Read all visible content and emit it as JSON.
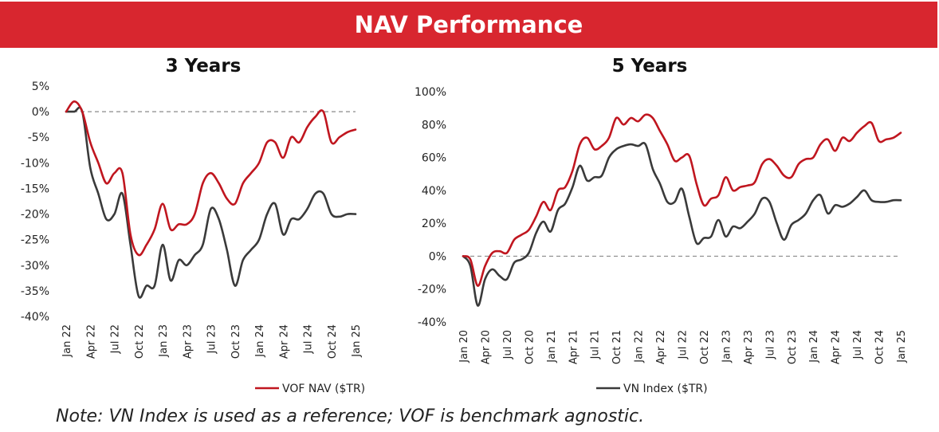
{
  "header": {
    "title": "NAV Performance"
  },
  "note": "Note: VN Index is used as a reference; VOF is benchmark agnostic.",
  "legend": {
    "vof": "VOF NAV ($TR)",
    "vn": "VN Index ($TR)"
  },
  "colors": {
    "banner": "#d8262f",
    "vof": "#c0161f",
    "vn": "#3a3a3a",
    "zero_line": "#8a8a8a"
  },
  "chart_data": [
    {
      "type": "line",
      "title": "3 Years",
      "ylim": [
        -40,
        5
      ],
      "y_ticks": [
        5,
        0,
        -5,
        -10,
        -15,
        -20,
        -25,
        -30,
        -35,
        -40
      ],
      "y_tick_labels": [
        "5%",
        "0%",
        "-5%",
        "-10%",
        "-15%",
        "-20%",
        "-25%",
        "-30%",
        "-35%",
        "-40%"
      ],
      "x_range": [
        0,
        36
      ],
      "x_tick_positions": [
        0,
        3,
        6,
        9,
        12,
        15,
        18,
        21,
        24,
        27,
        30,
        33,
        36
      ],
      "x_tick_labels": [
        "Jan 22",
        "Apr 22",
        "Jul 22",
        "Oct 22",
        "Jan 23",
        "Apr 23",
        "Jul 23",
        "Oct 23",
        "Jan 24",
        "Apr 24",
        "Jul 24",
        "Oct 24",
        "Jan 25"
      ],
      "zero_line": true,
      "series": [
        {
          "name": "VOF NAV ($TR)",
          "key": "vof",
          "x": [
            0,
            1,
            2,
            3,
            4,
            5,
            6,
            7,
            8,
            9,
            10,
            11,
            12,
            13,
            14,
            15,
            16,
            17,
            18,
            19,
            20,
            21,
            22,
            23,
            24,
            25,
            26,
            27,
            28,
            29,
            30,
            31,
            32,
            33,
            34,
            35,
            36
          ],
          "values": [
            0,
            2,
            0,
            -6,
            -10,
            -14,
            -12,
            -12,
            -24,
            -28,
            -26,
            -23,
            -18,
            -23,
            -22,
            -22,
            -20,
            -14,
            -12,
            -14,
            -17,
            -18,
            -14,
            -12,
            -10,
            -6,
            -6,
            -9,
            -5,
            -6,
            -3,
            -1,
            0,
            -6,
            -5,
            -4,
            -3.5
          ]
        },
        {
          "name": "VN Index ($TR)",
          "key": "vn",
          "x": [
            0,
            1,
            2,
            3,
            4,
            5,
            6,
            7,
            8,
            9,
            10,
            11,
            12,
            13,
            14,
            15,
            16,
            17,
            18,
            19,
            20,
            21,
            22,
            23,
            24,
            25,
            26,
            27,
            28,
            29,
            30,
            31,
            32,
            33,
            34,
            35,
            36
          ],
          "values": [
            0,
            0,
            0,
            -11,
            -16,
            -21,
            -20,
            -16,
            -26,
            -36,
            -34,
            -34,
            -26,
            -33,
            -29,
            -30,
            -28,
            -26,
            -19,
            -21,
            -27,
            -34,
            -29,
            -27,
            -25,
            -20,
            -18,
            -24,
            -21,
            -21,
            -19,
            -16,
            -16,
            -20,
            -20.5,
            -20,
            -20
          ]
        }
      ]
    },
    {
      "type": "line",
      "title": "5 Years",
      "ylim": [
        -40,
        100
      ],
      "y_ticks": [
        100,
        80,
        60,
        40,
        20,
        0,
        -20,
        -40
      ],
      "y_tick_labels": [
        "100%",
        "80%",
        "60%",
        "40%",
        "20%",
        "0%",
        "-20%",
        "-40%"
      ],
      "x_range": [
        0,
        60
      ],
      "x_tick_positions": [
        0,
        3,
        6,
        9,
        12,
        15,
        18,
        21,
        24,
        27,
        30,
        33,
        36,
        39,
        42,
        45,
        48,
        51,
        54,
        57,
        60
      ],
      "x_tick_labels": [
        "Jan 20",
        "Apr 20",
        "Jul 20",
        "Oct 20",
        "Jan 21",
        "Apr 21",
        "Jul 21",
        "Oct 21",
        "Jan 22",
        "Apr 22",
        "Jul 22",
        "Oct 22",
        "Jan 23",
        "Apr 23",
        "Jul 23",
        "Oct 23",
        "Jan 24",
        "Apr 24",
        "Jul 24",
        "Oct 24",
        "Jan 25"
      ],
      "zero_line": true,
      "series": [
        {
          "name": "VOF NAV ($TR)",
          "key": "vof",
          "x": [
            0,
            1,
            2,
            3,
            4,
            5,
            6,
            7,
            8,
            9,
            10,
            11,
            12,
            13,
            14,
            15,
            16,
            17,
            18,
            19,
            20,
            21,
            22,
            23,
            24,
            25,
            26,
            27,
            28,
            29,
            30,
            31,
            32,
            33,
            34,
            35,
            36,
            37,
            38,
            39,
            40,
            41,
            42,
            43,
            44,
            45,
            46,
            47,
            48,
            49,
            50,
            51,
            52,
            53,
            54,
            55,
            56,
            57,
            58,
            59,
            60
          ],
          "values": [
            0,
            -2,
            -18,
            -6,
            2,
            3,
            2,
            10,
            13,
            16,
            24,
            33,
            28,
            40,
            42,
            52,
            68,
            72,
            65,
            67,
            72,
            84,
            80,
            84,
            82,
            86,
            84,
            76,
            68,
            58,
            60,
            61,
            44,
            31,
            35,
            37,
            48,
            40,
            42,
            43,
            45,
            56,
            59,
            55,
            49,
            48,
            56,
            59,
            60,
            68,
            71,
            64,
            72,
            70,
            75,
            79,
            81,
            70,
            71,
            72,
            75
          ]
        },
        {
          "name": "VN Index ($TR)",
          "key": "vn",
          "x": [
            0,
            1,
            2,
            3,
            4,
            5,
            6,
            7,
            8,
            9,
            10,
            11,
            12,
            13,
            14,
            15,
            16,
            17,
            18,
            19,
            20,
            21,
            22,
            23,
            24,
            25,
            26,
            27,
            28,
            29,
            30,
            31,
            32,
            33,
            34,
            35,
            36,
            37,
            38,
            39,
            40,
            41,
            42,
            43,
            44,
            45,
            46,
            47,
            48,
            49,
            50,
            51,
            52,
            53,
            54,
            55,
            56,
            57,
            58,
            59,
            60
          ],
          "values": [
            0,
            -6,
            -30,
            -14,
            -8,
            -12,
            -14,
            -4,
            -2,
            2,
            14,
            21,
            15,
            28,
            32,
            42,
            55,
            46,
            48,
            49,
            60,
            65,
            67,
            68,
            67,
            68,
            53,
            44,
            33,
            33,
            41,
            24,
            8,
            11,
            12,
            22,
            12,
            18,
            17,
            21,
            26,
            35,
            33,
            20,
            10,
            19,
            22,
            26,
            34,
            37,
            26,
            31,
            30,
            32,
            36,
            40,
            34,
            33,
            33,
            34,
            34
          ]
        }
      ]
    }
  ]
}
